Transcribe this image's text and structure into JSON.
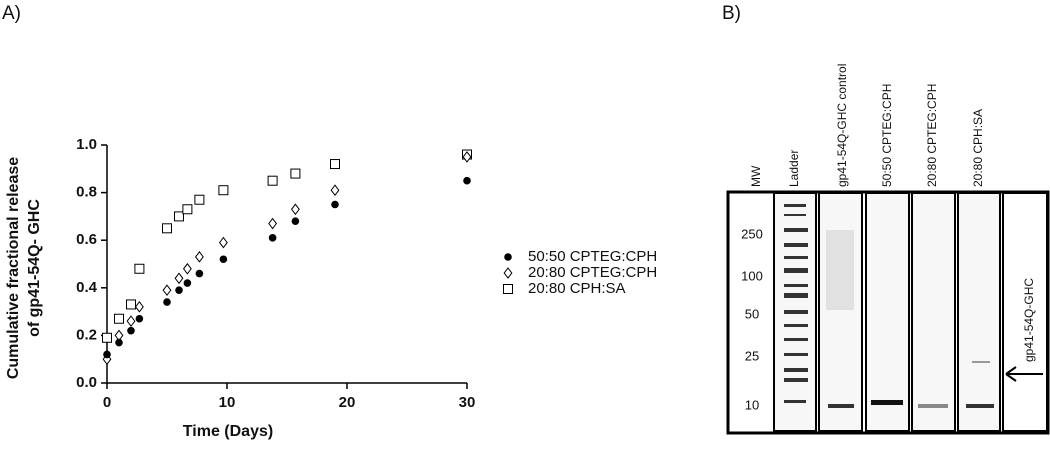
{
  "chart_data": {
    "type": "scatter",
    "panel_label": "A)",
    "y_label_lines": [
      "Cumulative fractional release",
      "of gp41-54Q- GHC"
    ],
    "x_label": "Time (Days)",
    "xlim": [
      0,
      30
    ],
    "xticks": [
      0,
      10,
      20,
      30
    ],
    "ylim": [
      0,
      1
    ],
    "yticks": [
      {
        "value": 0,
        "label": "0.0"
      },
      0.2,
      0.4,
      0.6,
      0.8,
      {
        "value": 1,
        "label": "1.0"
      }
    ],
    "legend": "right",
    "series": [
      {
        "name": "50:50 CPTEG:CPH",
        "color": "#000000",
        "marker": "circle",
        "x": [
          0,
          1,
          2,
          2.7,
          5,
          6,
          6.7,
          7.7,
          9.7,
          13.8,
          15.7,
          19,
          30
        ],
        "values": [
          0.12,
          0.17,
          0.22,
          0.27,
          0.34,
          0.39,
          0.42,
          0.46,
          0.52,
          0.61,
          0.68,
          0.75,
          0.85
        ]
      },
      {
        "name": "20:80 CPTEG:CPH",
        "color": "#000000",
        "marker": "diamond",
        "x": [
          0,
          1,
          2,
          2.7,
          5,
          6,
          6.7,
          7.7,
          9.7,
          13.8,
          15.7,
          19,
          30
        ],
        "values": [
          0.1,
          0.2,
          0.26,
          0.32,
          0.39,
          0.44,
          0.48,
          0.53,
          0.59,
          0.67,
          0.73,
          0.81,
          0.95
        ]
      },
      {
        "name": "20:80 CPH:SA",
        "color": "#000000",
        "marker": "square",
        "x": [
          0,
          1,
          2,
          2.7,
          5,
          6,
          6.7,
          7.7,
          9.7,
          13.8,
          15.7,
          19,
          30
        ],
        "values": [
          0.19,
          0.27,
          0.33,
          0.48,
          0.65,
          0.7,
          0.73,
          0.77,
          0.81,
          0.85,
          0.88,
          0.92,
          0.96
        ]
      }
    ]
  },
  "blot": {
    "panel_label": "B)",
    "lanes": [
      "MW",
      "Ladder",
      "gp41-54Q-GHC control",
      "50:50 CPTEG:CPH",
      "20:80 CPTEG:CPH",
      "20:80 CPH:SA"
    ],
    "mw_markers": [
      "250",
      "100",
      "50",
      "25",
      "10"
    ],
    "arrow_label": "gp41-54Q-GHC"
  }
}
